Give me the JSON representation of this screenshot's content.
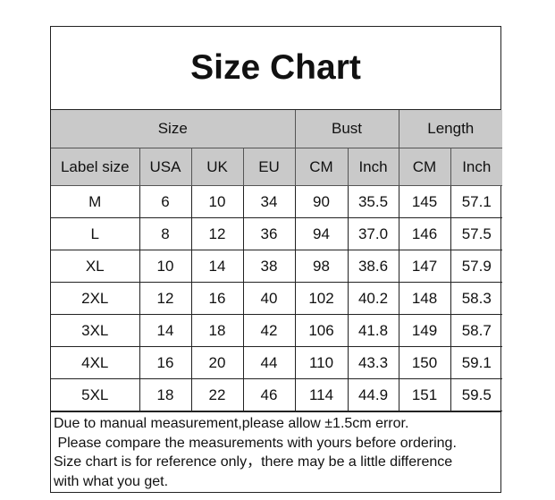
{
  "title": "Size Chart",
  "group_headers": [
    "Size",
    "Bust",
    "Length"
  ],
  "columns": [
    "Label size",
    "USA",
    "UK",
    "EU",
    "CM",
    "Inch",
    "CM",
    "Inch"
  ],
  "rows": [
    [
      "M",
      "6",
      "10",
      "34",
      "90",
      "35.5",
      "145",
      "57.1"
    ],
    [
      "L",
      "8",
      "12",
      "36",
      "94",
      "37.0",
      "146",
      "57.5"
    ],
    [
      "XL",
      "10",
      "14",
      "38",
      "98",
      "38.6",
      "147",
      "57.9"
    ],
    [
      "2XL",
      "12",
      "16",
      "40",
      "102",
      "40.2",
      "148",
      "58.3"
    ],
    [
      "3XL",
      "14",
      "18",
      "42",
      "106",
      "41.8",
      "149",
      "58.7"
    ],
    [
      "4XL",
      "16",
      "20",
      "44",
      "110",
      "43.3",
      "150",
      "59.1"
    ],
    [
      "5XL",
      "18",
      "22",
      "46",
      "114",
      "44.9",
      "151",
      "59.5"
    ]
  ],
  "notes": [
    "Due to manual measurement,please allow ±1.5cm error.",
    " Please compare the measurements with yours before ordering.",
    "Size chart is for reference only，there may be a little difference",
    "with what you get."
  ],
  "colors": {
    "header_bg": "#c9c9c9",
    "border": "#222222"
  }
}
